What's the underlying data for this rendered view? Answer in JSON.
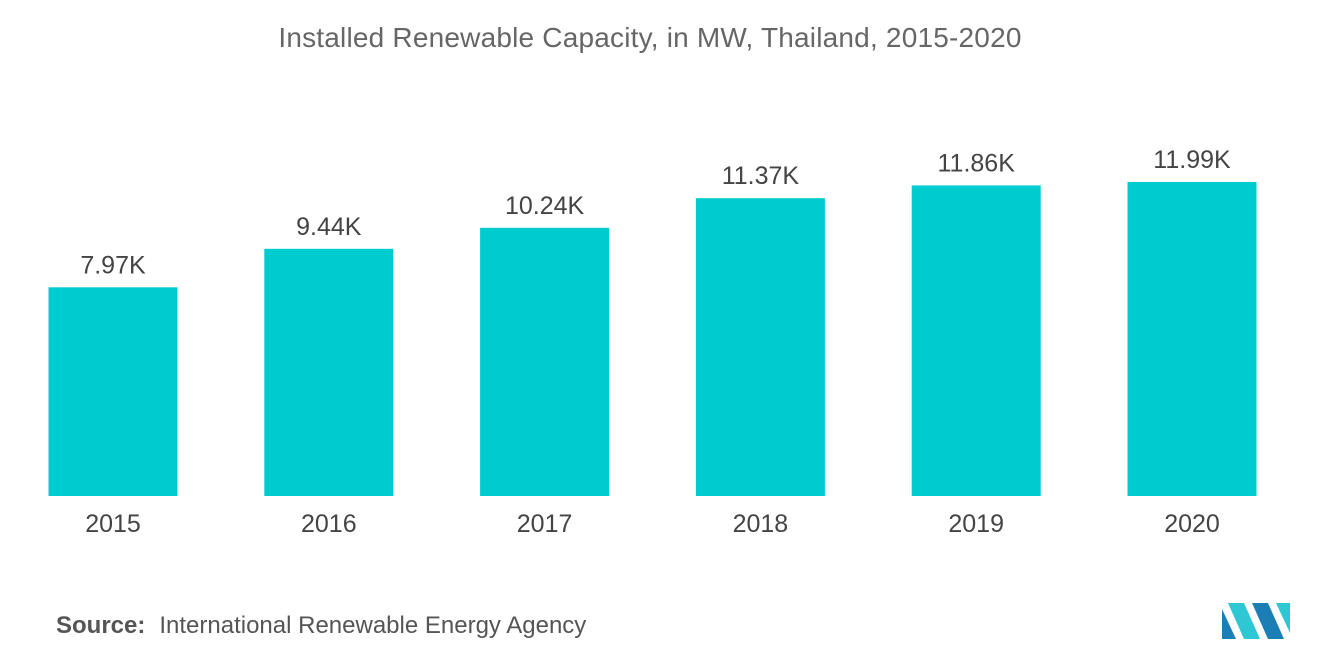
{
  "title": "Installed Renewable Capacity, in MW, Thailand, 2015-2020",
  "source": {
    "label": "Source:",
    "text": "International Renewable Energy Agency"
  },
  "logo": {
    "icon": "mordor-intelligence-logo-icon",
    "colors": [
      "#1b7fb5",
      "#2ec7d3"
    ]
  },
  "colors": {
    "bar": "#00ccd0",
    "text": "#444444"
  },
  "chart_data": {
    "type": "bar",
    "categories": [
      "2015",
      "2016",
      "2017",
      "2018",
      "2019",
      "2020"
    ],
    "values": [
      7970,
      9440,
      10240,
      11370,
      11860,
      11990
    ],
    "value_labels": [
      "7.97K",
      "9.44K",
      "10.24K",
      "11.37K",
      "11.86K",
      "11.99K"
    ],
    "title": "Installed Renewable Capacity, in MW, Thailand, 2015-2020",
    "xlabel": "",
    "ylabel": "",
    "ylim": [
      0,
      11990
    ],
    "grid": false,
    "legend": "none"
  }
}
